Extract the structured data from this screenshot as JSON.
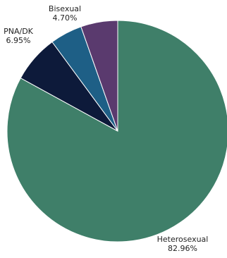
{
  "chart_data": {
    "type": "pie",
    "start": "top",
    "direction": "clockwise",
    "slices": [
      {
        "name": "Heterosexual",
        "value": 82.96,
        "label": "82.96%",
        "color": "#3f7f69"
      },
      {
        "name": "PNA/DK",
        "value": 6.95,
        "label": "6.95%",
        "color": "#0d1a3a"
      },
      {
        "name": "Bisexual",
        "value": 4.7,
        "label": "4.70%",
        "color": "#1e5f86"
      },
      {
        "name": "",
        "value": 5.39,
        "label": "",
        "color": "#5a3a6e"
      }
    ]
  }
}
